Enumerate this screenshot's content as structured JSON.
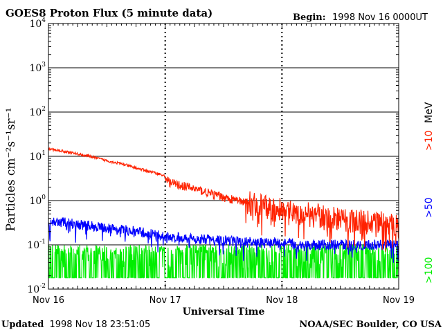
{
  "chart_data": {
    "type": "line",
    "title": "GOES8 Proton Flux (5 minute data)",
    "begin_label": "Begin:",
    "begin_value": "1998 Nov 16 0000UT",
    "xlabel": "Universal Time",
    "ylabel": "Particles cm⁻²s⁻¹sr⁻¹",
    "y_scale": "log",
    "ylim": [
      0.01,
      10000
    ],
    "y_ticks": [
      {
        "value": 0.01,
        "base": "10",
        "exp": "-2"
      },
      {
        "value": 0.1,
        "base": "10",
        "exp": "-1"
      },
      {
        "value": 1,
        "base": "10",
        "exp": "0"
      },
      {
        "value": 10,
        "base": "10",
        "exp": "1"
      },
      {
        "value": 100,
        "base": "10",
        "exp": "2"
      },
      {
        "value": 1000,
        "base": "10",
        "exp": "3"
      },
      {
        "value": 10000,
        "base": "10",
        "exp": "4"
      }
    ],
    "x_range_days": [
      0,
      3
    ],
    "x_ticks": [
      {
        "day": 0,
        "label": "Nov 16"
      },
      {
        "day": 1,
        "label": "Nov 17"
      },
      {
        "day": 2,
        "label": "Nov 18"
      },
      {
        "day": 3,
        "label": "Nov 19"
      }
    ],
    "grid": true,
    "series": [
      {
        "name": ">10 MeV",
        "color": "#ff2200",
        "points": [
          [
            0.0,
            14.5
          ],
          [
            0.1,
            13.5
          ],
          [
            0.2,
            12.0
          ],
          [
            0.35,
            10.0
          ],
          [
            0.5,
            8.0
          ],
          [
            0.65,
            6.5
          ],
          [
            0.8,
            5.0
          ],
          [
            0.95,
            4.0
          ],
          [
            1.0,
            3.5
          ],
          [
            1.03,
            2.6
          ],
          [
            1.1,
            2.3
          ],
          [
            1.2,
            2.0
          ],
          [
            1.3,
            1.7
          ],
          [
            1.4,
            1.4
          ],
          [
            1.5,
            1.2
          ],
          [
            1.6,
            1.0
          ],
          [
            1.7,
            0.9
          ],
          [
            1.8,
            0.75
          ],
          [
            1.9,
            0.65
          ],
          [
            2.0,
            0.6
          ],
          [
            2.1,
            0.55
          ],
          [
            2.2,
            0.5
          ],
          [
            2.3,
            0.45
          ],
          [
            2.4,
            0.4
          ],
          [
            2.5,
            0.38
          ],
          [
            2.6,
            0.35
          ],
          [
            2.7,
            0.33
          ],
          [
            2.8,
            0.32
          ],
          [
            2.9,
            0.3
          ],
          [
            3.0,
            0.28
          ]
        ]
      },
      {
        "name": ">50 MeV",
        "color": "#0000ff",
        "points": [
          [
            0.0,
            0.33
          ],
          [
            0.15,
            0.32
          ],
          [
            0.3,
            0.28
          ],
          [
            0.45,
            0.25
          ],
          [
            0.6,
            0.22
          ],
          [
            0.75,
            0.2
          ],
          [
            0.9,
            0.17
          ],
          [
            1.0,
            0.15
          ],
          [
            1.2,
            0.14
          ],
          [
            1.4,
            0.13
          ],
          [
            1.6,
            0.12
          ],
          [
            1.8,
            0.11
          ],
          [
            2.0,
            0.11
          ],
          [
            2.2,
            0.1
          ],
          [
            2.4,
            0.1
          ],
          [
            2.6,
            0.1
          ],
          [
            2.8,
            0.1
          ],
          [
            3.0,
            0.1
          ]
        ]
      },
      {
        "name": ">100 MeV",
        "color": "#00ee00",
        "points": [
          [
            0.0,
            0.05
          ],
          [
            0.5,
            0.05
          ],
          [
            1.0,
            0.05
          ],
          [
            1.5,
            0.05
          ],
          [
            2.0,
            0.05
          ],
          [
            2.5,
            0.05
          ],
          [
            3.0,
            0.05
          ]
        ]
      }
    ],
    "legend": [
      {
        "prefix": ">10",
        "suffix": "MeV",
        "color": "#ff2200"
      },
      {
        "prefix": ">50",
        "suffix": "",
        "color": "#0000ff"
      },
      {
        "prefix": ">100",
        "suffix": "",
        "color": "#00ee00"
      }
    ]
  },
  "footer": {
    "updated_label": "Updated",
    "updated_value": "1998 Nov 18 23:51:05",
    "source": "NOAA/SEC Boulder, CO USA"
  }
}
